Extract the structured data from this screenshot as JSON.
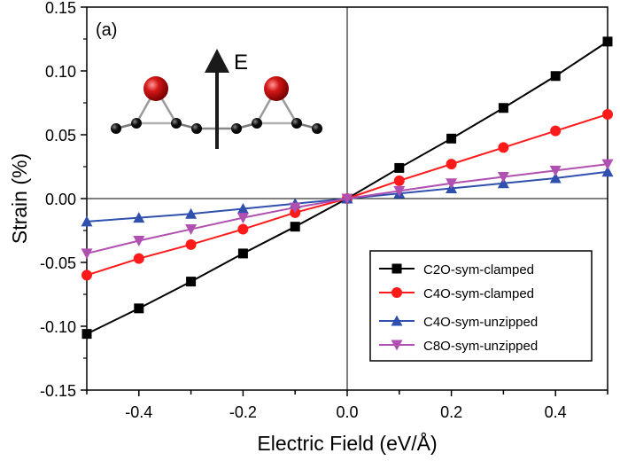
{
  "chart_data": {
    "type": "line",
    "title": "",
    "panel_label": "(a)",
    "xlabel": "Electric Field (eV/Å)",
    "ylabel": "Strain (%)",
    "xlim": [
      -0.5,
      0.5
    ],
    "ylim": [
      -0.15,
      0.15
    ],
    "xticks": [
      -0.4,
      -0.2,
      0.0,
      0.2,
      0.4
    ],
    "xtick_labels": [
      "-0.4",
      "-0.2",
      "0.0",
      "0.2",
      "0.4"
    ],
    "xminor_step": 0.1,
    "yticks": [
      -0.15,
      -0.1,
      -0.05,
      0.0,
      0.05,
      0.1,
      0.15
    ],
    "ytick_labels": [
      "-0.15",
      "-0.10",
      "-0.05",
      "0.00",
      "0.05",
      "0.10",
      "0.15"
    ],
    "grid": false,
    "zero_lines": true,
    "legend_position": "bottom-right",
    "x": [
      -0.5,
      -0.4,
      -0.3,
      -0.2,
      -0.1,
      0.0,
      0.1,
      0.2,
      0.3,
      0.4,
      0.5
    ],
    "series": [
      {
        "name": "C2O-sym-clamped",
        "color": "#000000",
        "marker": "square",
        "values": [
          -0.106,
          -0.086,
          -0.065,
          -0.043,
          -0.022,
          0.0,
          0.024,
          0.047,
          0.071,
          0.096,
          0.123
        ]
      },
      {
        "name": "C4O-sym-clamped",
        "color": "#ff1a1a",
        "marker": "circle",
        "values": [
          -0.06,
          -0.047,
          -0.036,
          -0.024,
          -0.011,
          0.0,
          0.014,
          0.027,
          0.04,
          0.053,
          0.066
        ]
      },
      {
        "name": "C4O-sym-unzipped",
        "color": "#3050b0",
        "marker": "triangle-up",
        "values": [
          -0.018,
          -0.015,
          -0.012,
          -0.008,
          -0.004,
          0.0,
          0.004,
          0.008,
          0.012,
          0.016,
          0.021
        ]
      },
      {
        "name": "C8O-sym-unzipped",
        "color": "#b050b0",
        "marker": "triangle-down",
        "values": [
          -0.043,
          -0.033,
          -0.024,
          -0.015,
          -0.007,
          0.0,
          0.006,
          0.012,
          0.017,
          0.022,
          0.027
        ]
      }
    ],
    "inset": {
      "description": "molecular structure with two oxygen atoms bridging carbon chains, electric field arrow pointing up",
      "field_label": "E",
      "atom_colors": {
        "oxygen": "#d41818",
        "carbon": "#111111"
      }
    }
  }
}
